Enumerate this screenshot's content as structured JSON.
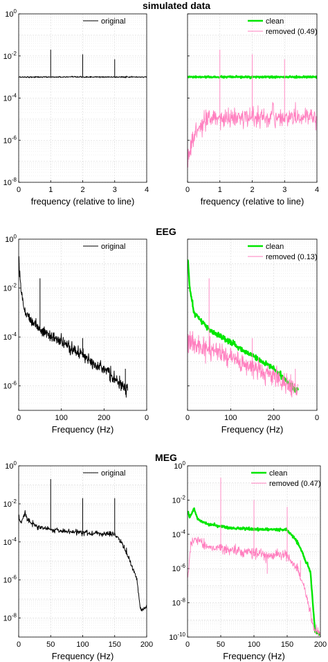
{
  "colors": {
    "original": "#000000",
    "clean": "#00e600",
    "removed": "#ff7fbf",
    "grid": "#d8d8d8",
    "axis": "#000000"
  },
  "titles": [
    "simulated data",
    "EEG",
    "MEG"
  ],
  "chart_data": [
    {
      "id": "sim-original",
      "type": "line",
      "title": "simulated data",
      "xlabel": "frequency (relative to line)",
      "ylabel": "",
      "xscale": "linear",
      "yscale": "log",
      "xlim": [
        0,
        4
      ],
      "ylim_exp": [
        -8,
        0
      ],
      "xticks": [
        "0",
        "1",
        "2",
        "3",
        "4"
      ],
      "yticks_exp": [
        -8,
        -6,
        -4,
        -2,
        0
      ],
      "grid": true,
      "legend": {
        "position": "top-right",
        "entries": [
          "original"
        ]
      },
      "series": [
        {
          "name": "original",
          "color_key": "original",
          "width": 1,
          "model": {
            "kind": "flat",
            "level": 0.001,
            "jitter": 0.015
          },
          "peaks": [
            {
              "x": 1,
              "y": 0.02
            },
            {
              "x": 2,
              "y": 0.012
            },
            {
              "x": 3,
              "y": 0.007
            }
          ]
        }
      ]
    },
    {
      "id": "sim-cleaned",
      "type": "line",
      "title": "",
      "xlabel": "frequency (relative to line)",
      "ylabel": "",
      "xscale": "linear",
      "yscale": "log",
      "xlim": [
        0,
        4
      ],
      "ylim_exp": [
        -8,
        0
      ],
      "xticks": [
        "0",
        "1",
        "2",
        "3",
        "4"
      ],
      "yticks_exp": [
        -8,
        -6,
        -4,
        -2,
        0
      ],
      "yticklabels_visible": false,
      "grid": true,
      "legend": {
        "position": "top-right",
        "entries": [
          "clean",
          "removed (0.49)"
        ]
      },
      "series": [
        {
          "name": "clean",
          "color_key": "clean",
          "width": 2.4,
          "model": {
            "kind": "flat",
            "level": 0.001,
            "jitter": 0.02
          },
          "peaks": []
        },
        {
          "name": "removed (0.49)",
          "color_key": "removed",
          "width": 0.9,
          "model": {
            "kind": "rise",
            "start": 1e-07,
            "plateau": 1.2e-05,
            "tau": 0.25,
            "jitter": 0.22
          },
          "peaks": [
            {
              "x": 1,
              "y": 0.02
            },
            {
              "x": 2,
              "y": 0.012
            },
            {
              "x": 3,
              "y": 0.007
            }
          ]
        }
      ]
    },
    {
      "id": "eeg-original",
      "type": "line",
      "title": "EEG",
      "xlabel": "Frequency (Hz)",
      "ylabel": "",
      "xscale": "linear",
      "yscale": "log",
      "xlim": [
        0,
        300
      ],
      "ylim_exp": [
        -7,
        0
      ],
      "xticks": [
        "0",
        "100",
        "200",
        "0"
      ],
      "yticks_exp": [
        -6,
        -4,
        -2,
        0
      ],
      "grid": true,
      "legend": {
        "position": "top-right",
        "entries": [
          "original"
        ]
      },
      "series": [
        {
          "name": "original",
          "color_key": "original",
          "width": 1,
          "model": {
            "kind": "powerlaw",
            "points": [
              [
                1,
                0.15
              ],
              [
                5,
                0.01
              ],
              [
                15,
                0.001
              ],
              [
                50,
                0.0002
              ],
              [
                100,
                6e-05
              ],
              [
                150,
                1.8e-05
              ],
              [
                200,
                5e-06
              ],
              [
                250,
                7e-07
              ]
            ],
            "xmax": 256,
            "jitter": 0.12
          },
          "peaks": [
            {
              "x": 50,
              "y": 0.025
            },
            {
              "x": 150,
              "y": 9e-05
            },
            {
              "x": 250,
              "y": 5e-06
            }
          ]
        }
      ]
    },
    {
      "id": "eeg-cleaned",
      "type": "line",
      "title": "",
      "xlabel": "Frequency (Hz)",
      "ylabel": "",
      "xscale": "linear",
      "yscale": "log",
      "xlim": [
        0,
        300
      ],
      "ylim_exp": [
        -7,
        0
      ],
      "xticks": [
        "0",
        "100",
        "200",
        "0"
      ],
      "yticks_exp": [
        -6,
        -4,
        -2,
        0
      ],
      "yticklabels_visible": false,
      "grid": true,
      "legend": {
        "position": "top-right",
        "entries": [
          "clean",
          "removed (0.13)"
        ]
      },
      "series": [
        {
          "name": "clean",
          "color_key": "clean",
          "width": 2.4,
          "model": {
            "kind": "powerlaw",
            "points": [
              [
                1,
                0.15
              ],
              [
                5,
                0.01
              ],
              [
                15,
                0.001
              ],
              [
                50,
                0.0002
              ],
              [
                100,
                6e-05
              ],
              [
                150,
                1.8e-05
              ],
              [
                200,
                5e-06
              ],
              [
                250,
                7e-07
              ]
            ],
            "xmax": 256,
            "jitter": 0.05
          },
          "peaks": []
        },
        {
          "name": "removed (0.13)",
          "color_key": "removed",
          "width": 0.9,
          "model": {
            "kind": "powerlaw",
            "points": [
              [
                1,
                8e-05
              ],
              [
                20,
                4e-05
              ],
              [
                50,
                3e-05
              ],
              [
                100,
                1.5e-05
              ],
              [
                150,
                6e-06
              ],
              [
                200,
                2.5e-06
              ],
              [
                250,
                8e-07
              ]
            ],
            "xmax": 256,
            "jitter": 0.2
          },
          "peaks": [
            {
              "x": 50,
              "y": 0.025
            },
            {
              "x": 150,
              "y": 9e-05
            },
            {
              "x": 250,
              "y": 5e-06
            }
          ]
        }
      ]
    },
    {
      "id": "meg-original",
      "type": "line",
      "title": "MEG",
      "xlabel": "Frequency (Hz)",
      "ylabel": "",
      "xscale": "linear",
      "yscale": "log",
      "xlim": [
        0,
        200
      ],
      "ylim_exp": [
        -9,
        0
      ],
      "xticks": [
        "0",
        "50",
        "100",
        "150",
        "200"
      ],
      "yticks_exp": [
        -8,
        -6,
        -4,
        -2,
        0
      ],
      "grid": true,
      "legend": {
        "position": "top-right",
        "entries": [
          "original"
        ]
      },
      "series": [
        {
          "name": "original",
          "color_key": "original",
          "width": 1,
          "model": {
            "kind": "powerlaw",
            "points": [
              [
                0.5,
                0.002
              ],
              [
                3,
                0.001
              ],
              [
                10,
                0.003
              ],
              [
                15,
                0.0012
              ],
              [
                30,
                0.0006
              ],
              [
                60,
                0.0004
              ],
              [
                100,
                0.0003
              ],
              [
                150,
                0.00025
              ],
              [
                160,
                0.0001
              ],
              [
                170,
                2e-05
              ],
              [
                185,
                1e-06
              ],
              [
                190,
                3e-08
              ],
              [
                200,
                3e-08
              ]
            ],
            "xmax": 200,
            "jitter": 0.07
          },
          "peaks": [
            {
              "x": 50,
              "y": 0.2
            },
            {
              "x": 100,
              "y": 0.02
            },
            {
              "x": 150,
              "y": 0.02
            }
          ]
        }
      ]
    },
    {
      "id": "meg-cleaned",
      "type": "line",
      "title": "",
      "xlabel": "Frequency (Hz)",
      "ylabel": "",
      "xscale": "linear",
      "yscale": "log",
      "xlim": [
        0,
        200
      ],
      "ylim_exp": [
        -10,
        0
      ],
      "xticks": [
        "0",
        "50",
        "100",
        "150",
        "200"
      ],
      "yticks_exp": [
        -10,
        -8,
        -6,
        -4,
        -2,
        0
      ],
      "grid": true,
      "legend": {
        "position": "top-right",
        "entries": [
          "clean",
          "removed (0.47)"
        ]
      },
      "series": [
        {
          "name": "clean",
          "color_key": "clean",
          "width": 2.4,
          "model": {
            "kind": "powerlaw",
            "points": [
              [
                0.5,
                0.002
              ],
              [
                3,
                0.001
              ],
              [
                10,
                0.003
              ],
              [
                15,
                0.0008
              ],
              [
                30,
                0.0004
              ],
              [
                60,
                0.00025
              ],
              [
                100,
                0.0002
              ],
              [
                150,
                0.00018
              ],
              [
                160,
                7e-05
              ],
              [
                170,
                1.5e-05
              ],
              [
                185,
                6e-07
              ],
              [
                192,
                2e-10
              ],
              [
                200,
                1.5e-10
              ]
            ],
            "xmax": 200,
            "jitter": 0.04
          },
          "peaks": []
        },
        {
          "name": "removed (0.47)",
          "color_key": "removed",
          "width": 0.9,
          "model": {
            "kind": "powerlaw",
            "points": [
              [
                0.5,
                3e-07
              ],
              [
                5,
                2e-05
              ],
              [
                10,
                6e-05
              ],
              [
                30,
                2e-05
              ],
              [
                60,
                1.2e-05
              ],
              [
                100,
                8e-06
              ],
              [
                150,
                5e-06
              ],
              [
                165,
                1e-06
              ],
              [
                175,
                1e-07
              ],
              [
                190,
                3e-10
              ],
              [
                200,
                2e-10
              ]
            ],
            "xmax": 200,
            "jitter": 0.15
          },
          "peaks": [
            {
              "x": 50,
              "y": 0.2
            },
            {
              "x": 100,
              "y": 0.01
            },
            {
              "x": 120,
              "y": 5e-07
            },
            {
              "x": 150,
              "y": 0.004
            },
            {
              "x": 170,
              "y": 3e-06
            }
          ]
        }
      ]
    }
  ]
}
